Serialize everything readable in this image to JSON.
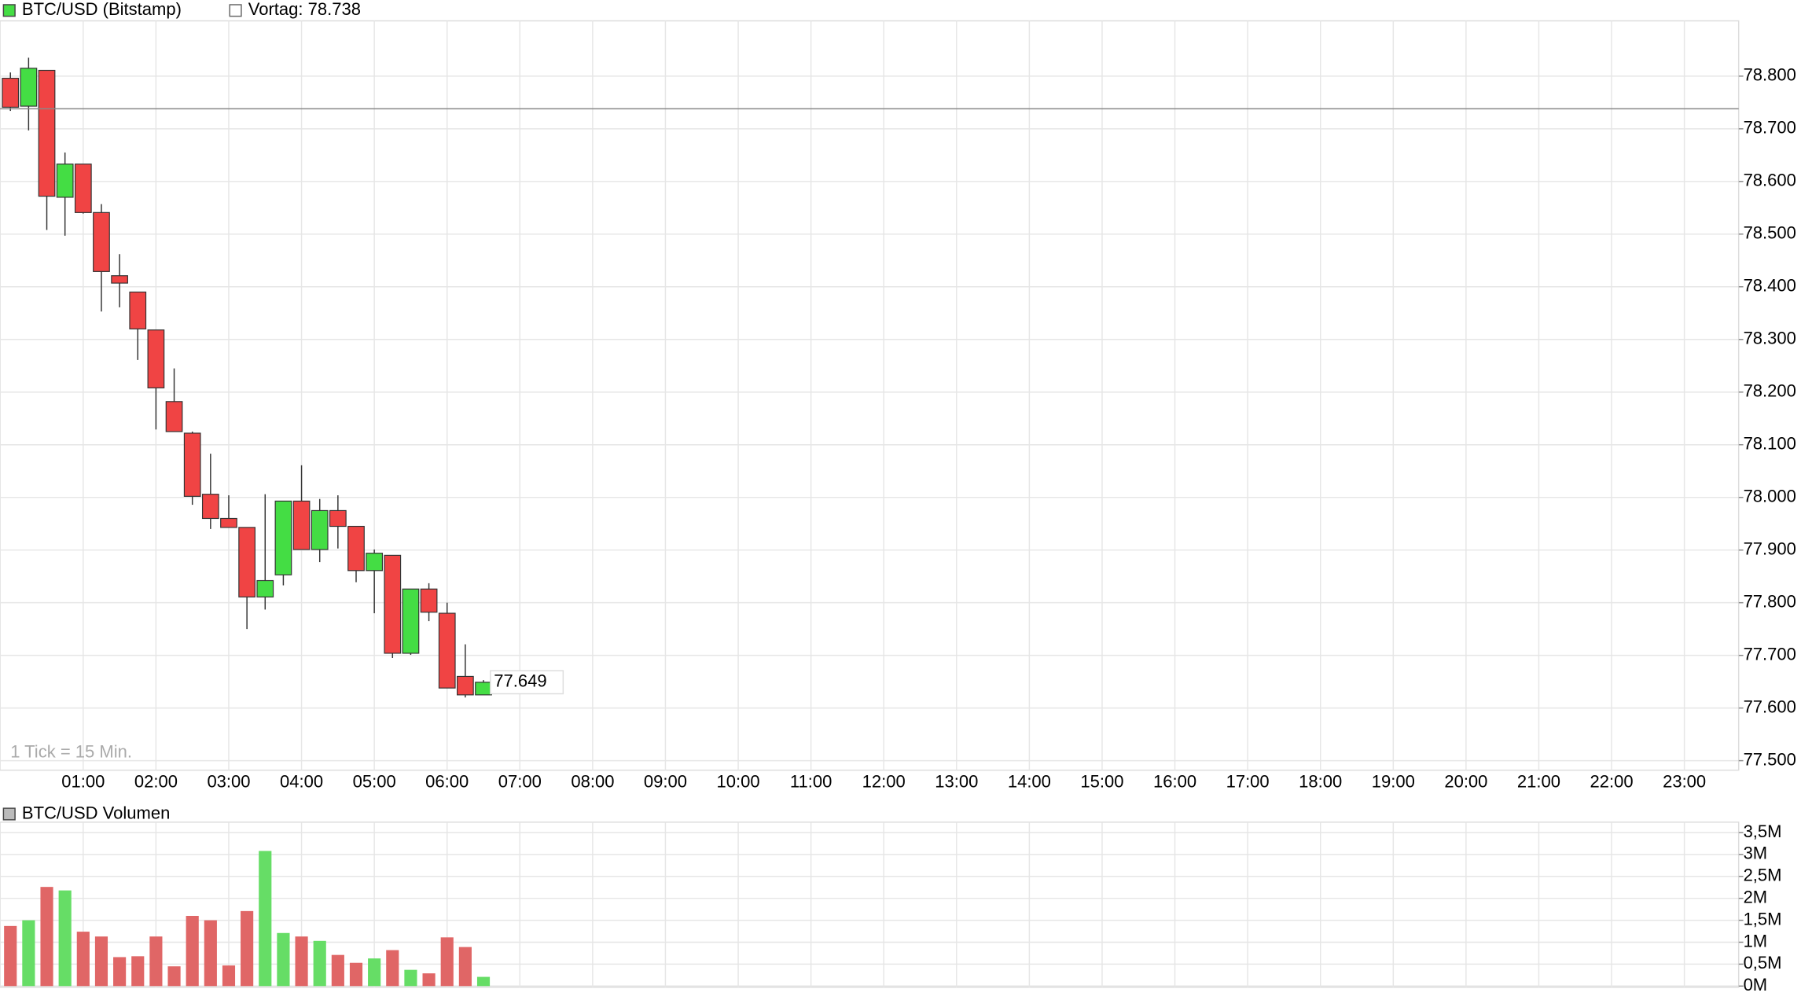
{
  "chart_data": [
    {
      "type": "candlestick",
      "title": "BTC/USD (Bitstamp)",
      "title_color": "#44dd44",
      "reference": {
        "label": "Vortag: 78.738",
        "value": 78.738,
        "color": "#888888"
      },
      "note": "1 Tick = 15 Min.",
      "last_price": 77.649,
      "up_color": "#44dd44",
      "down_color": "#f04444",
      "x": [
        0,
        0.25,
        0.5,
        0.75,
        1,
        1.25,
        1.5,
        1.75,
        2,
        2.25,
        2.5,
        2.75,
        3,
        3.25,
        3.5,
        3.75,
        4,
        4.25,
        4.5,
        4.75,
        5,
        5.25,
        5.5,
        5.75,
        6,
        6.25,
        6.5
      ],
      "open": [
        78.796,
        78.743,
        78.811,
        78.57,
        78.633,
        78.541,
        78.421,
        78.39,
        78.318,
        78.182,
        78.122,
        78.006,
        77.96,
        77.943,
        77.811,
        77.853,
        77.993,
        77.901,
        77.975,
        77.945,
        77.861,
        77.89,
        77.704,
        77.826,
        77.78,
        77.66,
        77.625
      ],
      "high": [
        78.807,
        78.835,
        78.811,
        78.655,
        78.633,
        78.557,
        78.462,
        78.39,
        78.318,
        78.245,
        78.125,
        78.083,
        78.004,
        77.943,
        78.006,
        77.993,
        78.061,
        77.997,
        78.004,
        77.945,
        77.901,
        77.89,
        77.826,
        77.837,
        77.8,
        77.721,
        77.653
      ],
      "low": [
        78.734,
        78.697,
        78.508,
        78.497,
        78.539,
        78.353,
        78.361,
        78.261,
        78.129,
        78.125,
        77.986,
        77.94,
        77.943,
        77.75,
        77.787,
        77.833,
        77.901,
        77.877,
        77.903,
        77.839,
        77.78,
        77.695,
        77.701,
        77.765,
        77.638,
        77.62,
        77.625
      ],
      "close": [
        78.741,
        78.815,
        78.572,
        78.633,
        78.541,
        78.429,
        78.407,
        78.32,
        78.208,
        78.125,
        78.002,
        77.96,
        77.943,
        77.811,
        77.842,
        77.993,
        77.901,
        77.975,
        77.945,
        77.861,
        77.894,
        77.704,
        77.826,
        77.782,
        77.638,
        77.625,
        77.649
      ],
      "xlim": [
        -0.143,
        23.746
      ],
      "xticks": [
        {
          "value": 1,
          "label": "01:00"
        },
        {
          "value": 2,
          "label": "02:00"
        },
        {
          "value": 3,
          "label": "03:00"
        },
        {
          "value": 4,
          "label": "04:00"
        },
        {
          "value": 5,
          "label": "05:00"
        },
        {
          "value": 6,
          "label": "06:00"
        },
        {
          "value": 7,
          "label": "07:00"
        },
        {
          "value": 8,
          "label": "08:00"
        },
        {
          "value": 9,
          "label": "09:00"
        },
        {
          "value": 10,
          "label": "10:00"
        },
        {
          "value": 11,
          "label": "11:00"
        },
        {
          "value": 12,
          "label": "12:00"
        },
        {
          "value": 13,
          "label": "13:00"
        },
        {
          "value": 14,
          "label": "14:00"
        },
        {
          "value": 15,
          "label": "15:00"
        },
        {
          "value": 16,
          "label": "16:00"
        },
        {
          "value": 17,
          "label": "17:00"
        },
        {
          "value": 18,
          "label": "18:00"
        },
        {
          "value": 19,
          "label": "19:00"
        },
        {
          "value": 20,
          "label": "20:00"
        },
        {
          "value": 21,
          "label": "21:00"
        },
        {
          "value": 22,
          "label": "22:00"
        },
        {
          "value": 23,
          "label": "23:00"
        }
      ],
      "ylim": [
        77.482,
        78.905
      ],
      "yticks": [
        {
          "value": 77.5,
          "label": "77.500"
        },
        {
          "value": 77.6,
          "label": "77.600"
        },
        {
          "value": 77.7,
          "label": "77.700"
        },
        {
          "value": 77.8,
          "label": "77.800"
        },
        {
          "value": 77.9,
          "label": "77.900"
        },
        {
          "value": 78.0,
          "label": "78.000"
        },
        {
          "value": 78.1,
          "label": "78.100"
        },
        {
          "value": 78.2,
          "label": "78.200"
        },
        {
          "value": 78.3,
          "label": "78.300"
        },
        {
          "value": 78.4,
          "label": "78.400"
        },
        {
          "value": 78.5,
          "label": "78.500"
        },
        {
          "value": 78.6,
          "label": "78.600"
        },
        {
          "value": 78.7,
          "label": "78.700"
        },
        {
          "value": 78.8,
          "label": "78.800"
        }
      ],
      "grid": true
    },
    {
      "type": "bar",
      "title": "BTC/USD Volumen",
      "title_color": "#bbbbbb",
      "x": [
        0,
        0.25,
        0.5,
        0.75,
        1,
        1.25,
        1.5,
        1.75,
        2,
        2.25,
        2.5,
        2.75,
        3,
        3.25,
        3.5,
        3.75,
        4,
        4.25,
        4.5,
        4.75,
        5,
        5.25,
        5.5,
        5.75,
        6,
        6.25,
        6.5
      ],
      "values": [
        1.37,
        1.5,
        2.26,
        2.18,
        1.24,
        1.13,
        0.66,
        0.68,
        1.13,
        0.45,
        1.6,
        1.5,
        0.47,
        1.71,
        3.08,
        1.21,
        1.13,
        1.03,
        0.71,
        0.53,
        0.63,
        0.82,
        0.37,
        0.29,
        1.11,
        0.89,
        0.21
      ],
      "colors": [
        "#e06666",
        "#66dd66",
        "#e06666",
        "#66dd66",
        "#e06666",
        "#e06666",
        "#e06666",
        "#e06666",
        "#e06666",
        "#e06666",
        "#e06666",
        "#e06666",
        "#e06666",
        "#e06666",
        "#66dd66",
        "#66dd66",
        "#e06666",
        "#66dd66",
        "#e06666",
        "#e06666",
        "#66dd66",
        "#e06666",
        "#66dd66",
        "#e06666",
        "#e06666",
        "#e06666",
        "#66dd66"
      ],
      "xlim": [
        -0.143,
        23.746
      ],
      "xticks": [
        1,
        2,
        3,
        4,
        5,
        6,
        7,
        8,
        9,
        10,
        11,
        12,
        13,
        14,
        15,
        16,
        17,
        18,
        19,
        20,
        21,
        22,
        23
      ],
      "ylim": [
        -0.026,
        3.737
      ],
      "yticks": [
        {
          "value": 0,
          "label": "0M"
        },
        {
          "value": 0.5,
          "label": "0,5M"
        },
        {
          "value": 1,
          "label": "1M"
        },
        {
          "value": 1.5,
          "label": "1,5M"
        },
        {
          "value": 2,
          "label": "2M"
        },
        {
          "value": 2.5,
          "label": "2,5M"
        },
        {
          "value": 3,
          "label": "3M"
        },
        {
          "value": 3.5,
          "label": "3,5M"
        }
      ],
      "grid": true
    }
  ]
}
